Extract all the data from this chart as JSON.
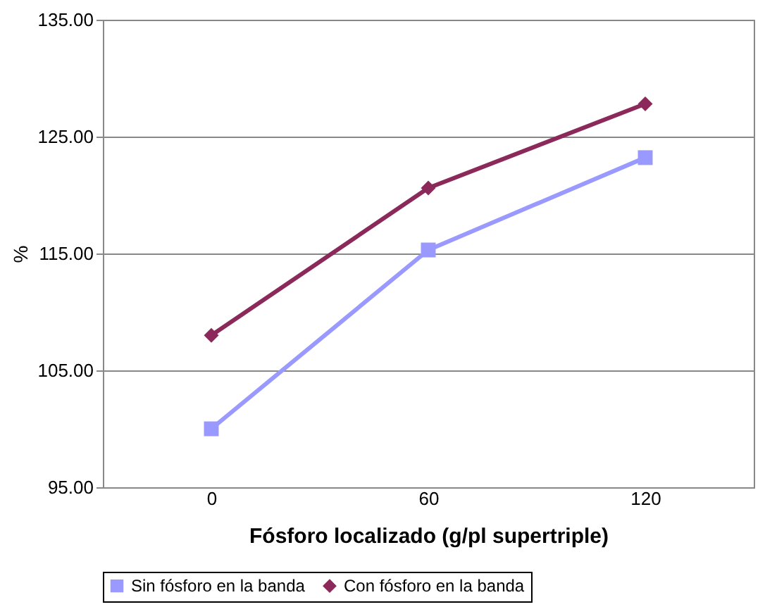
{
  "chart_data": {
    "type": "line",
    "xlabel": "Fósforo localizado (g/pl supertriple)",
    "ylabel": "%",
    "categories": [
      "0",
      "60",
      "120"
    ],
    "series": [
      {
        "name": "Sin fósforo en la banda",
        "color": "#9999ff",
        "marker": "square",
        "values": [
          100.0,
          115.3,
          123.2
        ]
      },
      {
        "name": "Con fósforo en la banda",
        "color": "#8b2a5a",
        "marker": "diamond",
        "values": [
          108.0,
          120.6,
          127.8
        ]
      }
    ],
    "ylim": [
      95,
      135
    ],
    "yticks": [
      {
        "value": 95,
        "label": "95.00"
      },
      {
        "value": 105,
        "label": "105.00"
      },
      {
        "value": 115,
        "label": "115.00"
      },
      {
        "value": 125,
        "label": "125.00"
      },
      {
        "value": 135,
        "label": "135.00"
      }
    ],
    "grid": "y",
    "legend": "bottom",
    "line_style": "solid"
  }
}
